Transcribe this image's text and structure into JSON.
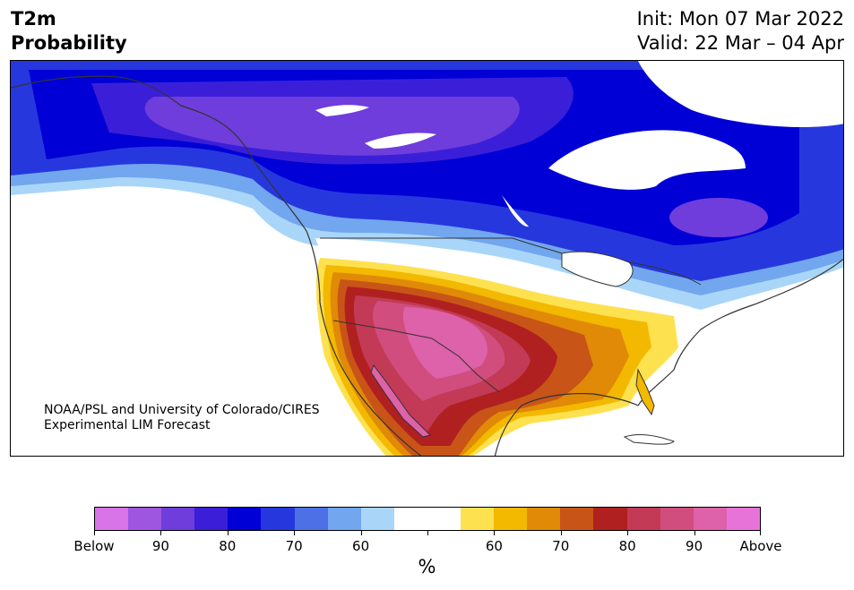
{
  "title": {
    "line1": "T2m",
    "line2": "Probability"
  },
  "valid": {
    "init": "Init: Mon 07 Mar 2022",
    "valid": "Valid: 22 Mar – 04 Apr"
  },
  "credit": {
    "line1": "NOAA/PSL and University of Colorado/CIRES",
    "line2": "Experimental LIM Forecast"
  },
  "colorbar": {
    "colors": [
      "#d873e8",
      "#9e55e0",
      "#6f3ddb",
      "#3b1fd8",
      "#0000d6",
      "#2638dd",
      "#4d70e6",
      "#72a6ee",
      "#a9d6f8",
      "#ffffff",
      "#ffffff",
      "#fee14f",
      "#f3b800",
      "#e08a08",
      "#c85417",
      "#b02020",
      "#c23a55",
      "#d04d7e",
      "#dd62aa",
      "#e873d8"
    ],
    "labels": [
      "Below",
      "90",
      "80",
      "70",
      "60",
      "",
      "60",
      "70",
      "80",
      "90",
      "Above"
    ],
    "units": "%"
  },
  "map_colors": {
    "below_90": "#6f3ddb",
    "below_70": "#0000d6",
    "below_60": "#4d70e6",
    "above_60": "#fee14f",
    "above_70": "#e08a08",
    "above_80": "#b02020",
    "above_90": "#dd62aa",
    "land_line": "#333333"
  }
}
